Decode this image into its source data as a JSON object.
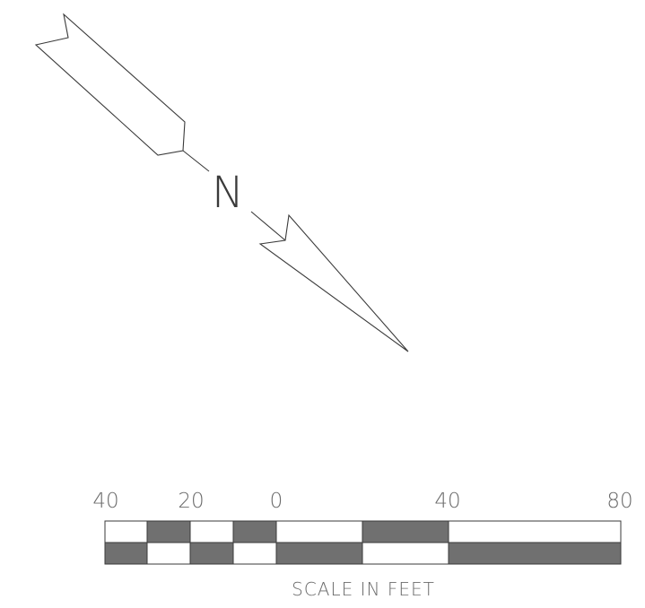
{
  "north_arrow": {
    "letter": "N"
  },
  "scale_bar": {
    "tick_labels": [
      "40",
      "20",
      "0",
      "40",
      "80"
    ],
    "caption": "SCALE IN FEET",
    "colors": {
      "dark": "#707070",
      "light": "#ffffff",
      "outline": "#3a3a3a",
      "text": "#6b6b6b"
    }
  }
}
